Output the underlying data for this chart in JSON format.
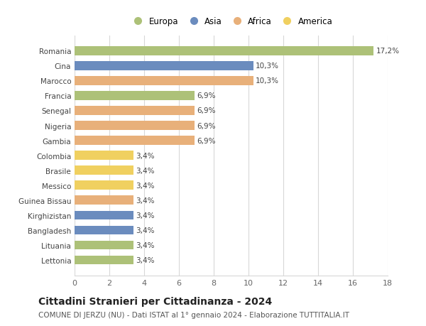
{
  "categories": [
    "Romania",
    "Cina",
    "Marocco",
    "Francia",
    "Senegal",
    "Nigeria",
    "Gambia",
    "Colombia",
    "Brasile",
    "Messico",
    "Guinea Bissau",
    "Kirghizistan",
    "Bangladesh",
    "Lituania",
    "Lettonia"
  ],
  "values": [
    17.2,
    10.3,
    10.3,
    6.9,
    6.9,
    6.9,
    6.9,
    3.4,
    3.4,
    3.4,
    3.4,
    3.4,
    3.4,
    3.4,
    3.4
  ],
  "labels": [
    "17,2%",
    "10,3%",
    "10,3%",
    "6,9%",
    "6,9%",
    "6,9%",
    "6,9%",
    "3,4%",
    "3,4%",
    "3,4%",
    "3,4%",
    "3,4%",
    "3,4%",
    "3,4%",
    "3,4%"
  ],
  "continents": [
    "Europa",
    "Asia",
    "Africa",
    "Europa",
    "Africa",
    "Africa",
    "Africa",
    "America",
    "America",
    "America",
    "Africa",
    "Asia",
    "Asia",
    "Europa",
    "Europa"
  ],
  "colors": {
    "Europa": "#adc178",
    "Asia": "#6b8cbe",
    "Africa": "#e8b07a",
    "America": "#f0d060"
  },
  "xlim": [
    0,
    18
  ],
  "xticks": [
    0,
    2,
    4,
    6,
    8,
    10,
    12,
    14,
    16,
    18
  ],
  "title": "Cittadini Stranieri per Cittadinanza - 2024",
  "subtitle": "COMUNE DI JERZU (NU) - Dati ISTAT al 1° gennaio 2024 - Elaborazione TUTTITALIA.IT",
  "background_color": "#ffffff",
  "grid_color": "#d8d8d8",
  "bar_height": 0.6,
  "label_fontsize": 7.5,
  "ytick_fontsize": 7.5,
  "xtick_fontsize": 8,
  "title_fontsize": 10,
  "subtitle_fontsize": 7.5
}
